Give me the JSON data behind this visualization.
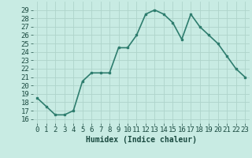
{
  "x": [
    0,
    1,
    2,
    3,
    4,
    5,
    6,
    7,
    8,
    9,
    10,
    11,
    12,
    13,
    14,
    15,
    16,
    17,
    18,
    19,
    20,
    21,
    22,
    23
  ],
  "y": [
    18.5,
    17.5,
    16.5,
    16.5,
    17.0,
    20.5,
    21.5,
    21.5,
    21.5,
    24.5,
    24.5,
    26.0,
    28.5,
    29.0,
    28.5,
    27.5,
    25.5,
    28.5,
    27.0,
    26.0,
    25.0,
    23.5,
    22.0,
    21.0
  ],
  "line_color": "#2e7d6e",
  "marker": "s",
  "marker_size": 2.0,
  "bg_color": "#c8ebe3",
  "grid_color": "#aed4cb",
  "xlabel": "Humidex (Indice chaleur)",
  "ylabel_ticks": [
    16,
    17,
    18,
    19,
    20,
    21,
    22,
    23,
    24,
    25,
    26,
    27,
    28,
    29
  ],
  "xlim": [
    -0.5,
    23.5
  ],
  "ylim": [
    15.5,
    30.0
  ],
  "font_color": "#1a4a40",
  "xlabel_fontsize": 7,
  "tick_fontsize": 6.5,
  "linewidth": 1.2
}
